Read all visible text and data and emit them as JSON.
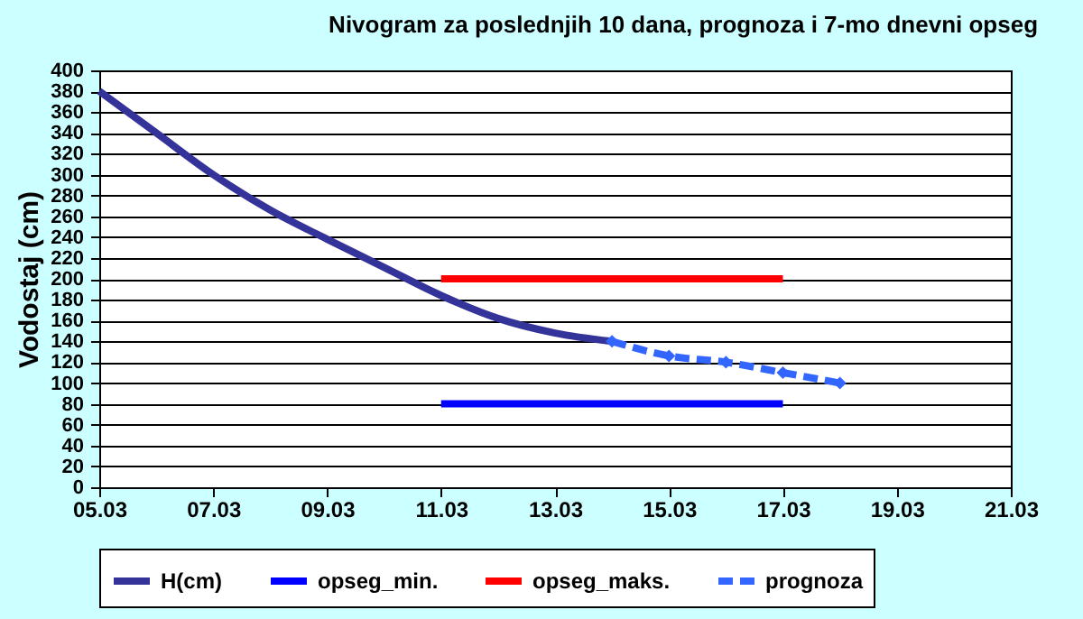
{
  "chart_data": {
    "type": "line",
    "title": "Nivogram za poslednjih 10 dana, prognoza i 7-mo dnevni opseg",
    "ylabel": "Vodostaj (cm)",
    "xlim": [
      "--03-05",
      "--03-21"
    ],
    "xticks": [
      {
        "value": "--03-05",
        "label": "05.03"
      },
      {
        "value": "--03-07",
        "label": "07.03"
      },
      {
        "value": "--03-09",
        "label": "09.03"
      },
      {
        "value": "--03-11",
        "label": "11.03"
      },
      {
        "value": "--03-13",
        "label": "13.03"
      },
      {
        "value": "--03-15",
        "label": "15.03"
      },
      {
        "value": "--03-17",
        "label": "17.03"
      },
      {
        "value": "--03-19",
        "label": "19.03"
      },
      {
        "value": "--03-21",
        "label": "21.03"
      }
    ],
    "ylim": [
      0,
      400
    ],
    "yticks": [
      0,
      20,
      40,
      60,
      80,
      100,
      120,
      140,
      160,
      180,
      200,
      220,
      240,
      260,
      280,
      300,
      320,
      340,
      360,
      380,
      400
    ],
    "grid": "y",
    "legend": "bottom",
    "series": [
      {
        "name": "H(cm)",
        "color": "#333399",
        "line_style": "solid",
        "marker": "none",
        "x": [
          "--03-05",
          "--03-06",
          "--03-07",
          "--03-08",
          "--03-09",
          "--03-10",
          "--03-11",
          "--03-12",
          "--03-13",
          "--03-14"
        ],
        "values": [
          380,
          340,
          300,
          266,
          238,
          211,
          184,
          162,
          148,
          140
        ]
      },
      {
        "name": "opseg_min.",
        "color": "#0000ff",
        "line_style": "solid",
        "marker": "none",
        "x": [
          "--03-11",
          "--03-17"
        ],
        "values": [
          80,
          80
        ]
      },
      {
        "name": "opseg_maks.",
        "color": "#ff0000",
        "line_style": "solid",
        "marker": "none",
        "x": [
          "--03-11",
          "--03-17"
        ],
        "values": [
          200,
          200
        ]
      },
      {
        "name": "prognoza",
        "color": "#3366ff",
        "line_style": "dashed",
        "marker": "diamond",
        "x": [
          "--03-14",
          "--03-15",
          "--03-16",
          "--03-17",
          "--03-18"
        ],
        "values": [
          140,
          126,
          120,
          110,
          100
        ]
      }
    ]
  }
}
